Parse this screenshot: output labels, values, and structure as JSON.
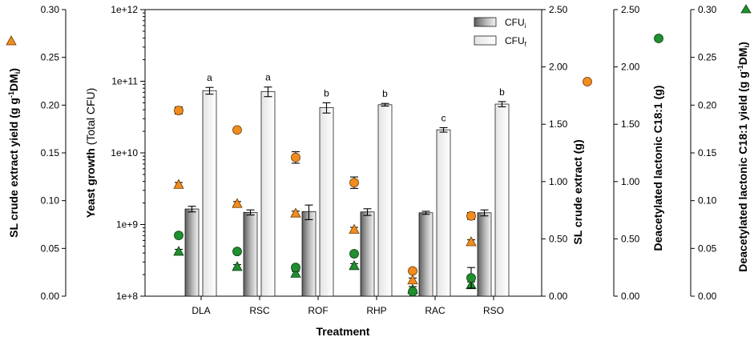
{
  "chart_data": {
    "type": "bar",
    "xlabel": "Treatment",
    "categories": [
      "DLA",
      "RSC",
      "ROF",
      "RHP",
      "RAC",
      "RSO"
    ],
    "letters": [
      "a",
      "a",
      "b",
      "b",
      "c",
      "b"
    ],
    "yeast_growth": {
      "scale": "log",
      "ylim": [
        100000000,
        1000000000000
      ],
      "ticks": [
        "1e+8",
        "1e+9",
        "1e+10",
        "1e+11",
        "1e+12"
      ],
      "ylabel_bold": "Yeast growth",
      "ylabel_rest": " (Total CFU)",
      "series": [
        {
          "name": "CFU",
          "sub": "i",
          "values": [
            1650000000,
            1480000000,
            1520000000,
            1500000000,
            1460000000,
            1460000000
          ],
          "errors": [
            150000000,
            120000000,
            350000000,
            160000000,
            70000000,
            140000000
          ],
          "color": "#9a9a9a"
        },
        {
          "name": "CFU",
          "sub": "f",
          "values": [
            74000000000,
            72000000000,
            43000000000,
            47000000000,
            21000000000,
            48000000000
          ],
          "errors": [
            8000000000,
            11000000000,
            7000000000,
            2000000000,
            1500000000,
            4000000000
          ],
          "color": "#f4f4f4"
        }
      ]
    },
    "sl_crude_extract": {
      "label": "SL crude extract  (g)",
      "ylim": [
        0,
        2.5
      ],
      "ticks": [
        "0.00",
        "0.50",
        "1.00",
        "1.50",
        "2.00",
        "2.50"
      ],
      "values": [
        1.62,
        1.45,
        1.21,
        0.99,
        0.22,
        0.7
      ],
      "errors": [
        0.03,
        0.02,
        0.05,
        0.05,
        0.02,
        0.03
      ],
      "color": "#f28c1e"
    },
    "deacetylated_c18": {
      "label": "Deacetylated lactonic C18:1 (g)",
      "ylim": [
        0,
        2.5
      ],
      "ticks": [
        "0.00",
        "0.50",
        "1.00",
        "1.50",
        "2.00",
        "2.50"
      ],
      "values": [
        0.53,
        0.39,
        0.25,
        0.37,
        0.04,
        0.16
      ],
      "errors": [
        0.01,
        0.02,
        0.02,
        0.02,
        0.02,
        0.09
      ],
      "color": "#1f8f2f"
    },
    "sl_yield": {
      "label_main": "SL crude extract yield",
      "label_unit": "(g g",
      "label_sup": "-1",
      "label_tail": "DM",
      "label_sub": "i",
      "label_close": ")",
      "ylim": [
        0,
        0.3
      ],
      "ticks": [
        "0.00",
        "0.05",
        "0.10",
        "0.15",
        "0.20",
        "0.25",
        "0.30"
      ],
      "values": [
        0.117,
        0.097,
        0.087,
        0.07,
        0.017,
        0.057
      ],
      "errors": [
        0.002,
        0.002,
        0.002,
        0.002,
        0.002,
        0.002
      ],
      "color": "#f28c1e"
    },
    "deacetylated_yield": {
      "label_main": "Deacetylated lactonic C18:1 yield",
      "label_unit": "(g g",
      "label_sup": "-1",
      "label_tail": "DM",
      "label_sub": "i",
      "label_close": ")",
      "ylim": [
        0,
        0.3
      ],
      "ticks": [
        "0.00",
        "0.05",
        "0.10",
        "0.15",
        "0.20",
        "0.25",
        "0.30"
      ],
      "values": [
        0.047,
        0.031,
        0.024,
        0.032,
        0.007,
        0.012
      ],
      "errors": [
        0.002,
        0.002,
        0.002,
        0.002,
        0.003,
        0.003
      ],
      "color": "#1f8f2f"
    }
  }
}
